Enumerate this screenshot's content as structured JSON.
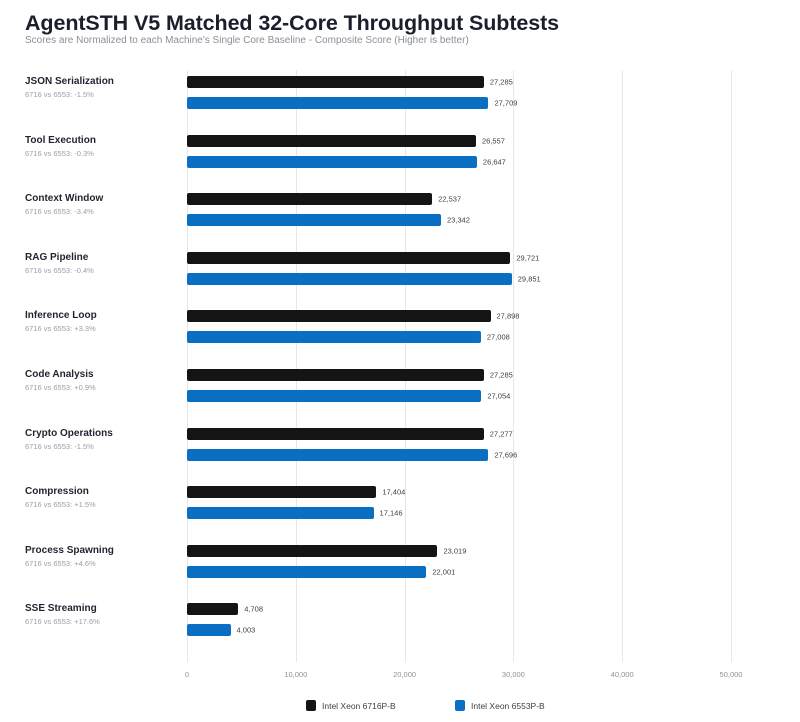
{
  "title": "AgentSTH V5 Matched 32-Core Throughput Subtests",
  "subtitle": "Scores are Normalized to each Machine's Single Core Baseline - Composite Score (Higher is better)",
  "colors": {
    "series_0": "#141414",
    "series_1": "#0a6fc2",
    "grid": "#e6e7ea"
  },
  "x_ticks": [
    "0",
    "10,000",
    "20,000",
    "30,000",
    "40,000",
    "50,000"
  ],
  "legend": [
    {
      "label": "Intel Xeon 6716P-B",
      "color": "#141414"
    },
    {
      "label": "Intel Xeon 6553P-B",
      "color": "#0a6fc2"
    }
  ],
  "categories": [
    {
      "name": "JSON Serialization",
      "delta": "6716 vs 6553: -1.5%",
      "values": [
        27285,
        27709
      ],
      "labels": [
        "27,285",
        "27,709"
      ]
    },
    {
      "name": "Tool Execution",
      "delta": "6716 vs 6553: -0.3%",
      "values": [
        26557,
        26647
      ],
      "labels": [
        "26,557",
        "26,647"
      ]
    },
    {
      "name": "Context Window",
      "delta": "6716 vs 6553: -3.4%",
      "values": [
        22537,
        23342
      ],
      "labels": [
        "22,537",
        "23,342"
      ]
    },
    {
      "name": "RAG Pipeline",
      "delta": "6716 vs 6553: -0.4%",
      "values": [
        29721,
        29851
      ],
      "labels": [
        "29,721",
        "29,851"
      ]
    },
    {
      "name": "Inference Loop",
      "delta": "6716 vs 6553: +3.3%",
      "values": [
        27898,
        27008
      ],
      "labels": [
        "27,898",
        "27,008"
      ]
    },
    {
      "name": "Code Analysis",
      "delta": "6716 vs 6553: +0.9%",
      "values": [
        27285,
        27054
      ],
      "labels": [
        "27,285",
        "27,054"
      ]
    },
    {
      "name": "Crypto Operations",
      "delta": "6716 vs 6553: -1.5%",
      "values": [
        27277,
        27696
      ],
      "labels": [
        "27,277",
        "27,696"
      ]
    },
    {
      "name": "Compression",
      "delta": "6716 vs 6553: +1.5%",
      "values": [
        17404,
        17146
      ],
      "labels": [
        "17,404",
        "17,146"
      ]
    },
    {
      "name": "Process Spawning",
      "delta": "6716 vs 6553: +4.6%",
      "values": [
        23019,
        22001
      ],
      "labels": [
        "23,019",
        "22,001"
      ]
    },
    {
      "name": "SSE Streaming",
      "delta": "6716 vs 6553: +17.6%",
      "values": [
        4708,
        4003
      ],
      "labels": [
        "4,708",
        "4,003"
      ]
    }
  ],
  "chart_data": {
    "type": "bar",
    "orientation": "horizontal",
    "title": "AgentSTH V5 Matched 32-Core Throughput Subtests",
    "subtitle": "Scores are Normalized to each Machine's Single Core Baseline - Composite Score (Higher is better)",
    "xlabel": "",
    "ylabel": "",
    "xlim": [
      0,
      50000
    ],
    "x_ticks": [
      0,
      10000,
      20000,
      30000,
      40000,
      50000
    ],
    "grid": true,
    "legend_position": "bottom",
    "categories": [
      "JSON Serialization",
      "Tool Execution",
      "Context Window",
      "RAG Pipeline",
      "Inference Loop",
      "Code Analysis",
      "Crypto Operations",
      "Compression",
      "Process Spawning",
      "SSE Streaming"
    ],
    "annotations": [
      "6716 vs 6553: -1.5%",
      "6716 vs 6553: -0.3%",
      "6716 vs 6553: -3.4%",
      "6716 vs 6553: -0.4%",
      "6716 vs 6553: +3.3%",
      "6716 vs 6553: +0.9%",
      "6716 vs 6553: -1.5%",
      "6716 vs 6553: +1.5%",
      "6716 vs 6553: +4.6%",
      "6716 vs 6553: +17.6%"
    ],
    "series": [
      {
        "name": "Intel Xeon 6716P-B",
        "color": "#141414",
        "values": [
          27285,
          26557,
          22537,
          29721,
          27898,
          27285,
          27277,
          17404,
          23019,
          4708
        ]
      },
      {
        "name": "Intel Xeon 6553P-B",
        "color": "#0a6fc2",
        "values": [
          27709,
          26647,
          23342,
          29851,
          27008,
          27054,
          27696,
          17146,
          22001,
          4003
        ]
      }
    ]
  }
}
